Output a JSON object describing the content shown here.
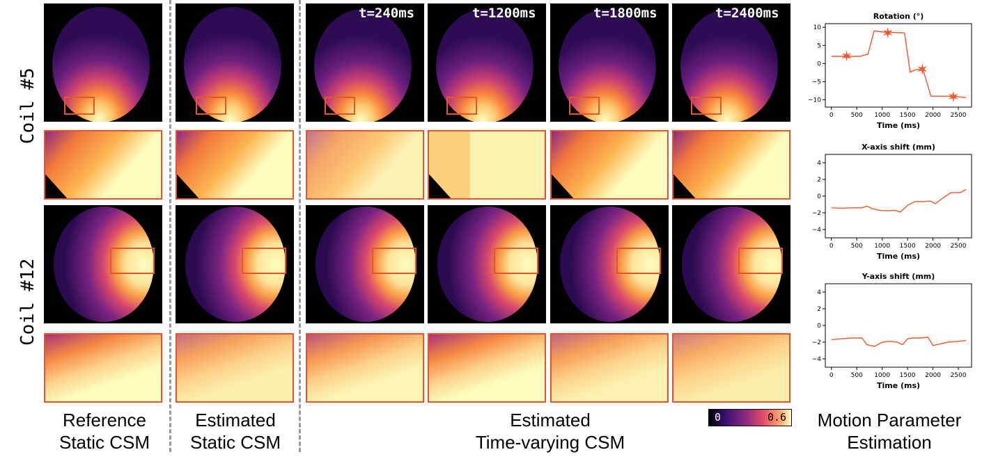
{
  "coil_labels": [
    "Coil #5",
    "Coil #12"
  ],
  "time_labels": [
    "t=240ms",
    "t=1200ms",
    "t=1800ms",
    "t=2400ms"
  ],
  "column_labels": {
    "reference": [
      "Reference",
      "Static CSM"
    ],
    "estimated_static": [
      "Estimated",
      "Static CSM"
    ],
    "estimated_time_varying": [
      "Estimated",
      "Time-varying CSM"
    ],
    "motion": [
      "Motion Parameter",
      "Estimation"
    ]
  },
  "colorbar": {
    "min": "0",
    "max": "0.6",
    "colors": [
      "#000004",
      "#3b0f70",
      "#8c2981",
      "#de4968",
      "#fe9f6d",
      "#fcfdbf"
    ]
  },
  "accent_color": "#e8542a",
  "chart_data": [
    {
      "type": "line",
      "title": "Rotation (°)",
      "xlabel": "Time (ms)",
      "ylabel": "",
      "xlim": [
        -120,
        2760
      ],
      "ylim": [
        -12,
        11
      ],
      "xticks": [
        "0",
        "500",
        "1000",
        "1500",
        "2000",
        "2500"
      ],
      "yticks": [
        "10",
        "5",
        "0",
        "−5",
        "−10"
      ],
      "ytick_values": [
        10,
        5,
        0,
        -5,
        -10
      ],
      "xtick_values": [
        0,
        500,
        1000,
        1500,
        2000,
        2500
      ],
      "x": [
        0,
        240,
        560,
        720,
        840,
        1000,
        1200,
        1440,
        1550,
        1650,
        1800,
        1960,
        2120,
        2400,
        2650
      ],
      "y": [
        2,
        2,
        2,
        2.6,
        9,
        8.7,
        8.6,
        8.4,
        -2.4,
        -1.7,
        -1.5,
        -9,
        -9,
        -9,
        -9.4
      ],
      "markers_x": [
        300,
        1110,
        1790,
        2400
      ],
      "markers_y": [
        2.1,
        8.5,
        -1.5,
        -9.1
      ],
      "color": "#f4572a"
    },
    {
      "type": "line",
      "title": "X-axis shift (mm)",
      "xlabel": "Time (ms)",
      "ylabel": "",
      "xlim": [
        -120,
        2760
      ],
      "ylim": [
        -5,
        5
      ],
      "xticks": [
        "0",
        "500",
        "1000",
        "1500",
        "2000",
        "2500"
      ],
      "yticks": [
        "4",
        "2",
        "0",
        "−2",
        "−4"
      ],
      "ytick_values": [
        4,
        2,
        0,
        -2,
        -4
      ],
      "xtick_values": [
        0,
        500,
        1000,
        1500,
        2000,
        2500
      ],
      "x": [
        0,
        200,
        400,
        600,
        700,
        800,
        950,
        1100,
        1250,
        1360,
        1500,
        1650,
        1800,
        1950,
        2050,
        2200,
        2350,
        2550,
        2650
      ],
      "y": [
        -1.4,
        -1.45,
        -1.4,
        -1.4,
        -1.2,
        -1.5,
        -1.7,
        -1.75,
        -1.7,
        -1.9,
        -1.1,
        -0.65,
        -0.65,
        -0.6,
        -0.9,
        -0.2,
        0.4,
        0.45,
        0.8
      ],
      "color": "#f4572a"
    },
    {
      "type": "line",
      "title": "Y-axis shift (mm)",
      "xlabel": "Time (ms)",
      "ylabel": "",
      "xlim": [
        -120,
        2760
      ],
      "ylim": [
        -5,
        5
      ],
      "xticks": [
        "0",
        "500",
        "1000",
        "1500",
        "2000",
        "2500"
      ],
      "yticks": [
        "4",
        "2",
        "0",
        "−2",
        "−4"
      ],
      "ytick_values": [
        4,
        2,
        0,
        -2,
        -4
      ],
      "xtick_values": [
        0,
        500,
        1000,
        1500,
        2000,
        2500
      ],
      "x": [
        0,
        200,
        400,
        600,
        700,
        850,
        1000,
        1150,
        1300,
        1400,
        1500,
        1600,
        1750,
        1900,
        2000,
        2150,
        2300,
        2500,
        2650
      ],
      "y": [
        -1.7,
        -1.6,
        -1.5,
        -1.5,
        -2.3,
        -2.5,
        -2.0,
        -1.9,
        -2.0,
        -2.3,
        -1.6,
        -1.5,
        -1.5,
        -1.4,
        -2.4,
        -2.2,
        -2.0,
        -1.9,
        -1.8
      ],
      "color": "#f4572a"
    }
  ]
}
